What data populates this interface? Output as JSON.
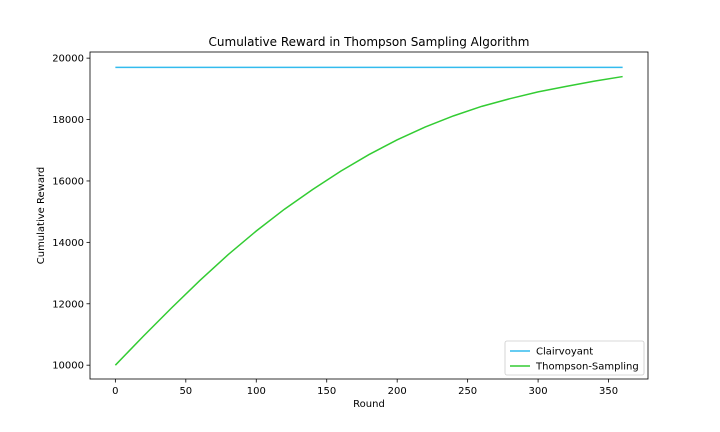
{
  "chart_data": {
    "type": "line",
    "title": "Cumulative Reward in Thompson Sampling Algorithm",
    "xlabel": "Round",
    "ylabel": "Cumulative Reward",
    "xlim": [
      -18,
      378
    ],
    "ylim": [
      9550,
      20200
    ],
    "xticks": [
      0,
      50,
      100,
      150,
      200,
      250,
      300,
      350
    ],
    "yticks": [
      10000,
      12000,
      14000,
      16000,
      18000,
      20000
    ],
    "grid": false,
    "legend_position": "lower right",
    "series": [
      {
        "name": "Clairvoyant",
        "color": "#33bbee",
        "x": [
          0,
          360
        ],
        "values": [
          19700,
          19700
        ]
      },
      {
        "name": "Thompson-Sampling",
        "color": "#33cc33",
        "x": [
          0,
          20,
          40,
          60,
          80,
          100,
          120,
          140,
          160,
          180,
          200,
          220,
          240,
          260,
          280,
          300,
          320,
          340,
          360
        ],
        "values": [
          10000,
          10950,
          11870,
          12760,
          13600,
          14370,
          15080,
          15720,
          16320,
          16860,
          17340,
          17760,
          18120,
          18430,
          18680,
          18900,
          19080,
          19250,
          19400
        ]
      }
    ]
  }
}
